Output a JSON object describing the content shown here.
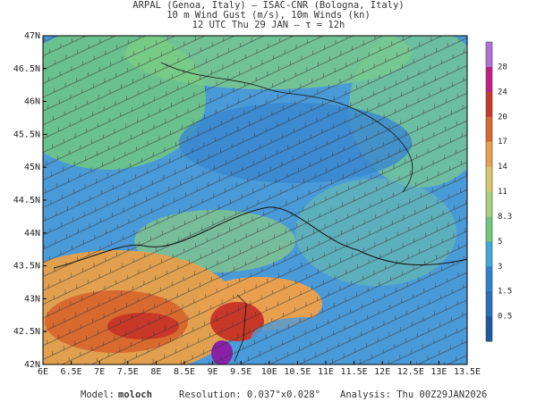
{
  "header": {
    "line1": "ARPAL (Genoa, Italy)  —  ISAC-CNR (Bologna, Italy)",
    "line2": "10 m Wind Gust (m/s), 10m Winds (kn)",
    "line3": "12 UTC Thu 29 JAN  —  τ = 12h"
  },
  "map": {
    "lat_labels": [
      "47N",
      "46.5N",
      "46N",
      "45.5N",
      "45N",
      "44.5N",
      "44N",
      "43.5N",
      "43N",
      "42.5N",
      "42N"
    ],
    "lon_labels": [
      "6E",
      "6.5E",
      "7E",
      "7.5E",
      "8E",
      "8.5E",
      "9E",
      "9.5E",
      "10E",
      "10.5E",
      "11E",
      "11.5E",
      "12E",
      "12.5E",
      "13E",
      "13.5E"
    ]
  },
  "colorbar": {
    "labels": [
      "28",
      "24",
      "20",
      "17",
      "14",
      "11",
      "8.3",
      "5",
      "3",
      "1.5",
      "0.5"
    ],
    "colors": [
      "#b070d8",
      "#c02080",
      "#c83828",
      "#d86a30",
      "#e8a050",
      "#d8c870",
      "#a8d080",
      "#70c880",
      "#40a8d8",
      "#3080d0",
      "#2a70b8",
      "#1b5aa0"
    ]
  },
  "footer": {
    "model_label": "Model:",
    "model": "moloch",
    "resolution": "Resolution: 0.037°x0.028°",
    "analysis": "Analysis: Thu 00Z29JAN2026"
  }
}
